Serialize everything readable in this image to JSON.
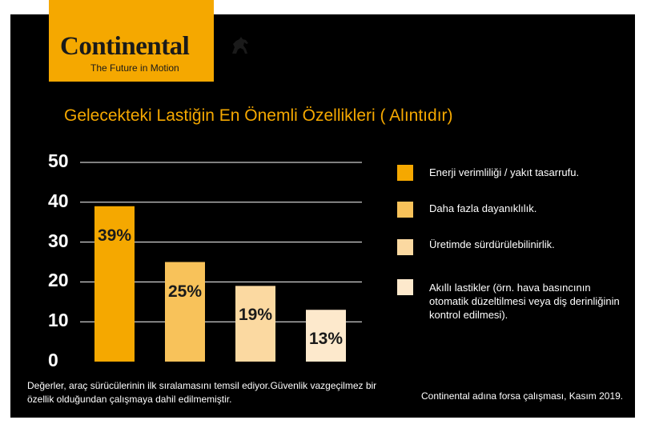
{
  "brand": {
    "name": "Continental",
    "tagline": "The Future in Motion"
  },
  "chart_data": {
    "type": "bar",
    "title": "Gelecekteki Lastiğin En Önemli Özellikleri ( Alıntıdır)",
    "ylim": [
      0,
      50
    ],
    "yticks": [
      "50",
      "40",
      "30",
      "20",
      "10",
      "0"
    ],
    "grid": true,
    "legend_position": "right",
    "categories": [
      "Enerji verimliliği / yakıt tasarrufu.",
      "Daha fazla dayanıklılık.",
      "Üretimde sürdürülebilinirlik.",
      "Akıllı  lastikler (örn. hava basıncının otomatik düzeltilmesi veya diş derinliğinin kontrol edilmesi)."
    ],
    "values": [
      39,
      25,
      19,
      13
    ],
    "data_labels": [
      "39%",
      "25%",
      "19%",
      "13%"
    ],
    "colors": [
      "#f5a800",
      "#f8c25a",
      "#fbd9a1",
      "#fde9cc"
    ]
  },
  "footnote": "Değerler, araç sürücülerinin ilk sıralamasını temsil ediyor.Güvenlik vazgeçilmez bir özellik olduğundan  çalışmaya dahil edilmemiştir.",
  "source": "Continental adına forsa çalışması, Kasım 2019."
}
